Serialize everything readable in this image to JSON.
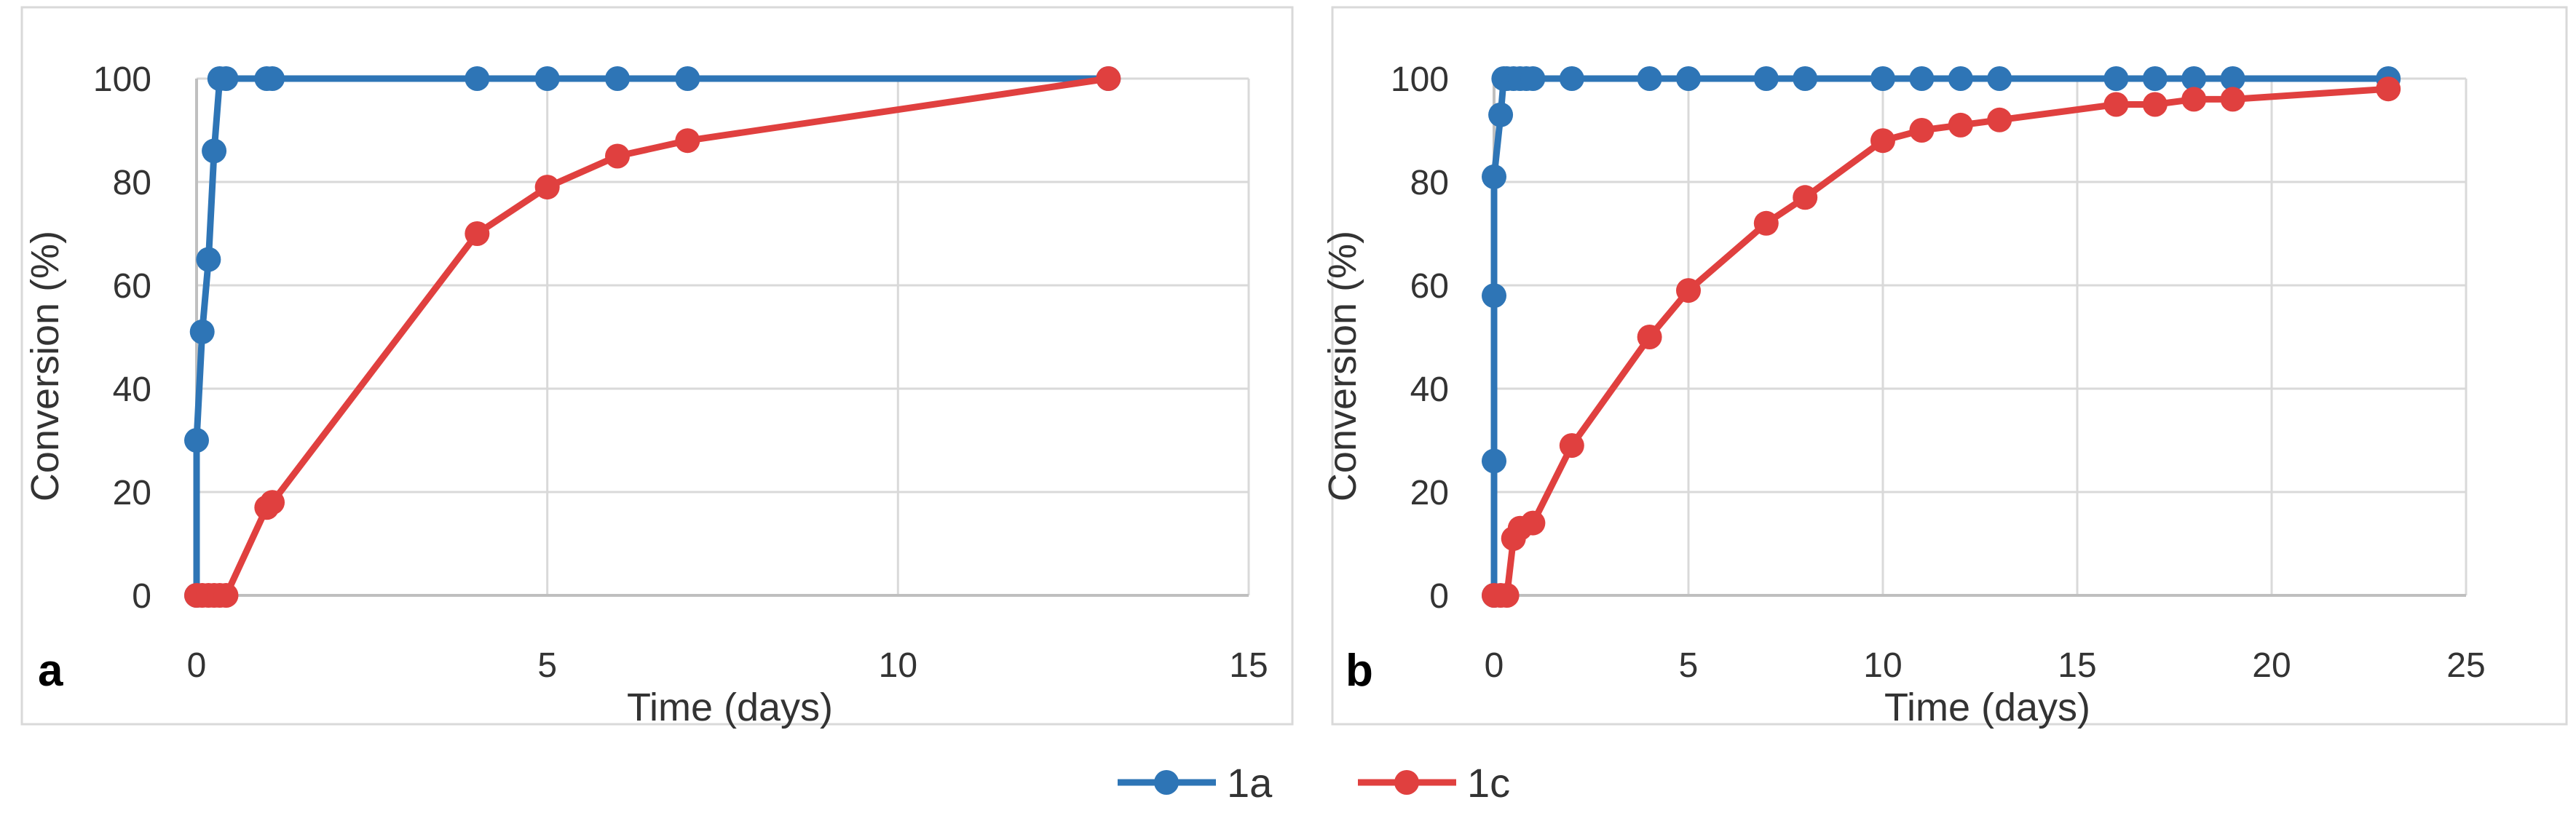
{
  "chart_data": [
    {
      "type": "line",
      "panel_label": "a",
      "xlabel": "Time (days)",
      "ylabel": "Conversion (%)",
      "xlim": [
        0,
        15
      ],
      "ylim": [
        0,
        100
      ],
      "xticks": [
        0,
        5,
        10,
        15
      ],
      "yticks": [
        0,
        20,
        40,
        60,
        80,
        100
      ],
      "grid": true,
      "series": [
        {
          "name": "1a",
          "color": "#2e75b6",
          "x": [
            0,
            0,
            0.08,
            0.17,
            0.25,
            0.33,
            0.42,
            1,
            1.08,
            4,
            5,
            6,
            7,
            13
          ],
          "y": [
            0,
            30,
            51,
            65,
            86,
            100,
            100,
            100,
            100,
            100,
            100,
            100,
            100,
            100
          ]
        },
        {
          "name": "1c",
          "color": "#e0403f",
          "x": [
            0,
            0.08,
            0.17,
            0.25,
            0.33,
            0.42,
            1,
            1.08,
            4,
            5,
            6,
            7,
            13
          ],
          "y": [
            0,
            0,
            0,
            0,
            0,
            0,
            17,
            18,
            70,
            79,
            85,
            88,
            100
          ]
        }
      ]
    },
    {
      "type": "line",
      "panel_label": "b",
      "xlabel": "Time (days)",
      "ylabel": "Conversion (%)",
      "xlim": [
        0,
        25
      ],
      "ylim": [
        0,
        100
      ],
      "xticks": [
        0,
        5,
        10,
        15,
        20,
        25
      ],
      "yticks": [
        0,
        20,
        40,
        60,
        80,
        100
      ],
      "grid": true,
      "series": [
        {
          "name": "1a",
          "color": "#2e75b6",
          "x": [
            0,
            0,
            0,
            0,
            0.17,
            0.25,
            0.33,
            0.5,
            0.67,
            0.83,
            1,
            2,
            4,
            5,
            7,
            8,
            10,
            11,
            12,
            13,
            16,
            17,
            18,
            19,
            23
          ],
          "y": [
            0,
            26,
            58,
            81,
            93,
            100,
            100,
            100,
            100,
            100,
            100,
            100,
            100,
            100,
            100,
            100,
            100,
            100,
            100,
            100,
            100,
            100,
            100,
            100,
            100
          ]
        },
        {
          "name": "1c",
          "color": "#e0403f",
          "x": [
            0,
            0.17,
            0.33,
            0.5,
            0.67,
            1,
            2,
            4,
            5,
            7,
            8,
            10,
            11,
            12,
            13,
            16,
            17,
            18,
            19,
            23
          ],
          "y": [
            0,
            0,
            0,
            11,
            13,
            14,
            29,
            50,
            59,
            72,
            77,
            88,
            90,
            91,
            92,
            95,
            95,
            96,
            96,
            98
          ]
        }
      ]
    }
  ],
  "legend": {
    "placement": "bottom-center",
    "items": [
      {
        "label": "1a",
        "color": "#2e75b6"
      },
      {
        "label": "1c",
        "color": "#e0403f"
      }
    ]
  }
}
